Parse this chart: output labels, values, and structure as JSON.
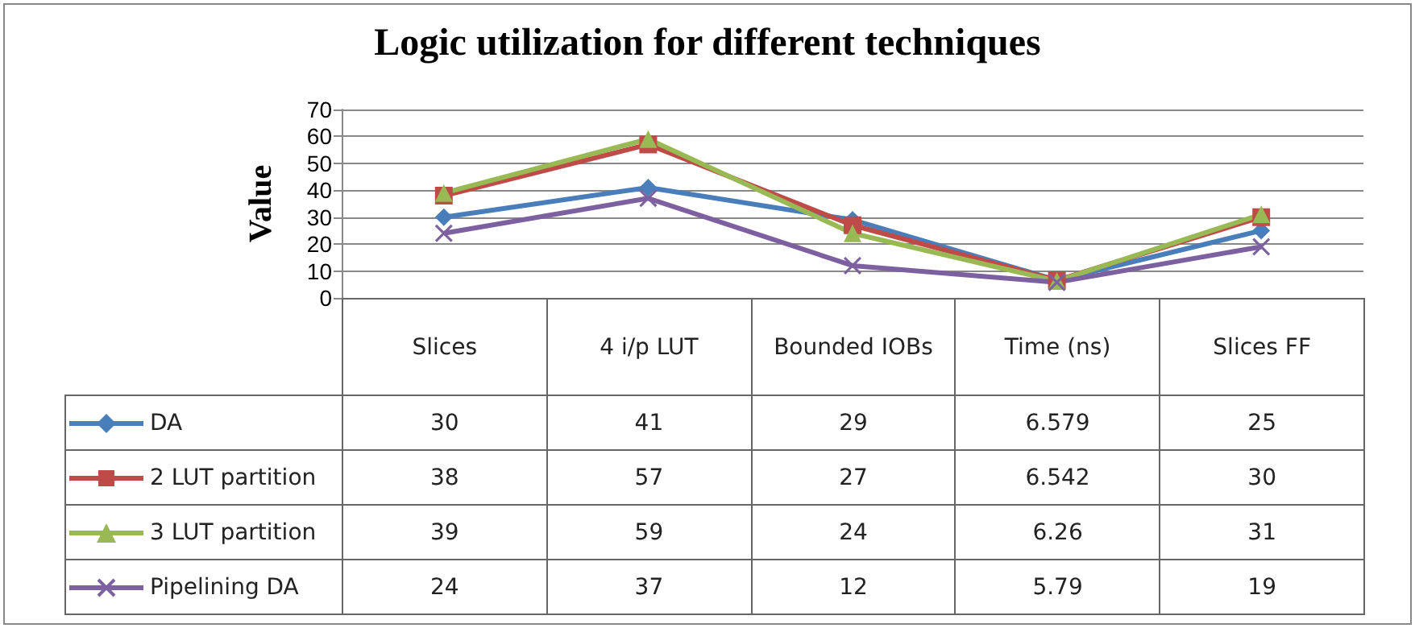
{
  "chart_data": {
    "type": "line",
    "title": "Logic utilization for different techniques",
    "ylabel": "Value",
    "categories": [
      "Slices",
      "4 i/p LUT",
      "Bounded IOBs",
      "Time (ns)",
      "Slices FF"
    ],
    "ylim": [
      0,
      70
    ],
    "yticks": [
      0,
      10,
      20,
      30,
      40,
      50,
      60,
      70
    ],
    "grid": "y",
    "legend": "bottom",
    "data_labels": true,
    "series": [
      {
        "name": "DA",
        "color": "#4a7ebb",
        "marker": "diamond",
        "values": [
          30,
          41,
          29,
          6.579,
          25
        ]
      },
      {
        "name": "2 LUT partition",
        "color": "#be4b48",
        "marker": "square",
        "values": [
          38,
          57,
          27,
          6.542,
          30
        ]
      },
      {
        "name": "3 LUT partition",
        "color": "#98b954",
        "marker": "triangle",
        "values": [
          39,
          59,
          24,
          6.26,
          31
        ]
      },
      {
        "name": "Pipelining DA",
        "color": "#7d60a0",
        "marker": "cross",
        "values": [
          24,
          37,
          12,
          5.79,
          19
        ]
      }
    ]
  }
}
